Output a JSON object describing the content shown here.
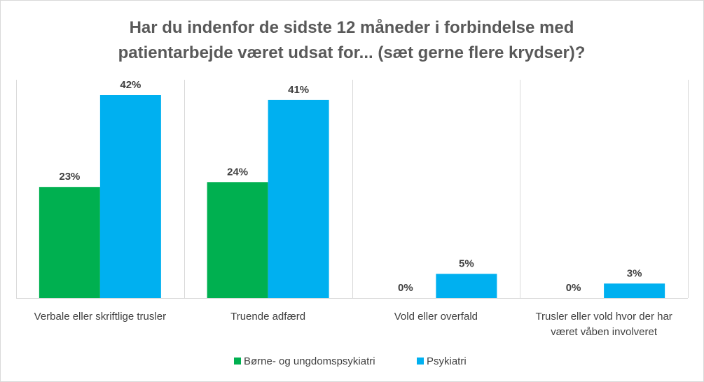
{
  "chart_data": {
    "type": "bar",
    "title": "Har du indenfor de sidste 12 måneder i forbindelse med patientarbejde været udsat for... (sæt gerne flere krydser)?",
    "title_lines": [
      "Har du indenfor de sidste 12 måneder i forbindelse med",
      "patientarbejde været udsat for... (sæt gerne flere krydser)?"
    ],
    "categories": [
      [
        "Verbale eller skriftlige trusler"
      ],
      [
        "Truende adfærd"
      ],
      [
        "Vold eller overfald"
      ],
      [
        "Trusler eller vold hvor der har",
        "været våben involveret"
      ]
    ],
    "series": [
      {
        "name": "Børne- og ungdomspsykiatri",
        "color": "#00b050",
        "values": [
          23,
          24,
          0,
          0
        ],
        "labels": [
          "23%",
          "24%",
          "0%",
          "0%"
        ]
      },
      {
        "name": "Psykiatri",
        "color": "#00b0f0",
        "values": [
          42,
          41,
          5,
          3
        ],
        "labels": [
          "42%",
          "41%",
          "5%",
          "3%"
        ]
      }
    ],
    "ylim": [
      0,
      45
    ],
    "value_unit": "%",
    "grid": "vertical category separators",
    "legend_position": "bottom"
  }
}
